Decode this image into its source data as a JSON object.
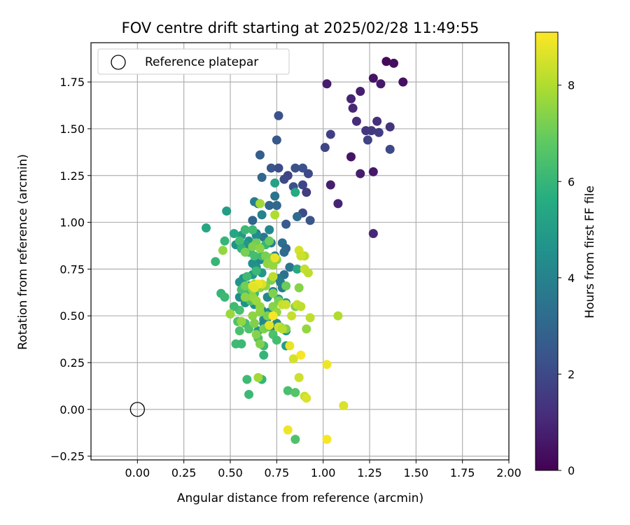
{
  "chart_data": {
    "type": "scatter",
    "title": "FOV centre drift starting at 2025/02/28 11:49:55",
    "xlabel": "Angular distance from reference (arcmin)",
    "ylabel": "Rotation from reference (arcmin)",
    "xlim": [
      -0.25,
      2.0
    ],
    "ylim": [
      -0.27,
      1.96
    ],
    "xticks": [
      "0.00",
      "0.25",
      "0.50",
      "0.75",
      "1.00",
      "1.25",
      "1.50",
      "1.75",
      "2.00"
    ],
    "yticks": [
      "−0.25",
      "0.00",
      "0.25",
      "0.50",
      "0.75",
      "1.00",
      "1.25",
      "1.50",
      "1.75"
    ],
    "grid": true,
    "legend": {
      "position": "top-left",
      "entries": [
        "Reference platepar"
      ]
    },
    "colorbar": {
      "label": "Hours from first FF file",
      "range": [
        0,
        9.1
      ],
      "ticks": [
        "0",
        "2",
        "4",
        "6",
        "8"
      ],
      "colormap": "viridis"
    },
    "reference_point": {
      "x": 0.0,
      "y": 0.0
    },
    "series": [
      {
        "points": [
          [
            1.34,
            1.86,
            0.2
          ],
          [
            1.38,
            1.85,
            0.3
          ],
          [
            1.43,
            1.75,
            0.4
          ],
          [
            1.27,
            1.77,
            0.5
          ],
          [
            1.31,
            1.74,
            0.6
          ],
          [
            1.02,
            1.74,
            0.7
          ],
          [
            1.2,
            1.7,
            0.8
          ],
          [
            1.15,
            1.66,
            0.9
          ],
          [
            1.16,
            1.61,
            1.0
          ],
          [
            1.18,
            1.54,
            1.1
          ],
          [
            1.29,
            1.54,
            1.2
          ],
          [
            1.36,
            1.51,
            1.3
          ],
          [
            1.23,
            1.49,
            1.4
          ],
          [
            1.26,
            1.49,
            1.5
          ],
          [
            1.3,
            1.48,
            1.6
          ],
          [
            1.04,
            1.47,
            1.7
          ],
          [
            1.24,
            1.44,
            1.8
          ],
          [
            1.01,
            1.4,
            1.9
          ],
          [
            1.36,
            1.39,
            2.0
          ],
          [
            1.15,
            1.35,
            0.5
          ],
          [
            1.27,
            1.27,
            0.6
          ],
          [
            1.2,
            1.26,
            0.7
          ],
          [
            1.04,
            1.2,
            0.8
          ],
          [
            1.08,
            1.1,
            0.9
          ],
          [
            1.27,
            0.94,
            1.0
          ],
          [
            0.76,
            1.57,
            2.3
          ],
          [
            0.75,
            1.44,
            2.5
          ],
          [
            0.66,
            1.36,
            2.7
          ],
          [
            0.72,
            1.29,
            2.4
          ],
          [
            0.76,
            1.29,
            2.1
          ],
          [
            0.85,
            1.29,
            2.2
          ],
          [
            0.89,
            1.29,
            2.3
          ],
          [
            0.92,
            1.26,
            2.0
          ],
          [
            0.81,
            1.25,
            1.8
          ],
          [
            0.79,
            1.23,
            2.0
          ],
          [
            0.89,
            1.2,
            1.9
          ],
          [
            0.84,
            1.19,
            2.2
          ],
          [
            0.67,
            1.24,
            3.0
          ],
          [
            0.91,
            1.16,
            1.6
          ],
          [
            0.74,
            1.14,
            3.5
          ],
          [
            0.71,
            1.09,
            3.0
          ],
          [
            0.75,
            1.09,
            3.1
          ],
          [
            0.65,
            1.1,
            3.2
          ],
          [
            0.63,
            1.11,
            3.8
          ],
          [
            0.89,
            1.05,
            2.1
          ],
          [
            0.93,
            1.01,
            2.4
          ],
          [
            0.8,
            0.99,
            2.6
          ],
          [
            0.86,
            1.03,
            3.2
          ],
          [
            0.62,
            1.01,
            3.0
          ],
          [
            0.67,
            1.04,
            4.0
          ],
          [
            0.71,
            0.96,
            4.2
          ],
          [
            0.64,
            0.94,
            3.5
          ],
          [
            0.68,
            0.92,
            3.6
          ],
          [
            0.72,
            0.89,
            3.8
          ],
          [
            0.78,
            0.89,
            3.3
          ],
          [
            0.8,
            0.86,
            3.0
          ],
          [
            0.79,
            0.84,
            3.2
          ],
          [
            0.74,
            0.82,
            4.0
          ],
          [
            0.66,
            0.8,
            4.2
          ],
          [
            0.7,
            0.78,
            4.1
          ],
          [
            0.82,
            0.76,
            3.5
          ],
          [
            0.79,
            0.72,
            3.4
          ],
          [
            0.76,
            0.7,
            3.6
          ],
          [
            0.77,
            0.68,
            3.9
          ],
          [
            0.78,
            0.65,
            3.8
          ],
          [
            0.73,
            0.63,
            4.0
          ],
          [
            0.7,
            0.6,
            4.2
          ],
          [
            0.71,
            0.52,
            4.4
          ],
          [
            0.68,
            0.48,
            4.5
          ],
          [
            0.65,
            0.42,
            4.6
          ],
          [
            0.64,
            0.93,
            4.4
          ],
          [
            0.6,
            0.9,
            4.6
          ],
          [
            0.58,
            0.88,
            4.8
          ],
          [
            0.56,
            0.93,
            4.9
          ],
          [
            0.53,
            0.88,
            4.6
          ],
          [
            0.61,
            0.86,
            4.3
          ],
          [
            0.72,
            0.81,
            4.8
          ],
          [
            0.62,
            0.78,
            4.5
          ],
          [
            0.64,
            0.76,
            4.6
          ],
          [
            0.67,
            0.73,
            4.8
          ],
          [
            0.62,
            0.72,
            4.7
          ],
          [
            0.57,
            0.7,
            4.6
          ],
          [
            0.55,
            0.68,
            4.7
          ],
          [
            0.6,
            0.66,
            4.5
          ],
          [
            0.58,
            0.62,
            4.4
          ],
          [
            0.55,
            0.6,
            4.4
          ],
          [
            0.58,
            0.57,
            4.6
          ],
          [
            0.63,
            0.56,
            4.5
          ],
          [
            0.67,
            0.53,
            4.2
          ],
          [
            0.7,
            0.49,
            4.0
          ],
          [
            0.75,
            0.46,
            4.3
          ],
          [
            0.8,
            0.42,
            4.4
          ],
          [
            0.72,
            0.44,
            4.1
          ],
          [
            0.68,
            0.46,
            4.2
          ],
          [
            0.85,
            1.16,
            5.5
          ],
          [
            0.74,
            1.21,
            5.2
          ],
          [
            0.48,
            1.06,
            5.0
          ],
          [
            0.37,
            0.97,
            5.4
          ],
          [
            0.52,
            0.94,
            5.4
          ],
          [
            0.86,
            0.75,
            5.5
          ],
          [
            0.8,
            0.34,
            5.0
          ],
          [
            0.8,
            0.57,
            4.9
          ],
          [
            0.76,
            0.59,
            5.0
          ],
          [
            0.42,
            0.79,
            6.0
          ],
          [
            0.47,
            0.9,
            6.0
          ],
          [
            0.55,
            0.9,
            6.3
          ],
          [
            0.58,
            0.96,
            6.1
          ],
          [
            0.62,
            0.96,
            6.2
          ],
          [
            0.56,
            0.86,
            5.9
          ],
          [
            0.6,
            0.84,
            6.1
          ],
          [
            0.63,
            0.82,
            6.3
          ],
          [
            0.67,
            0.82,
            6.2
          ],
          [
            0.69,
            0.88,
            6.0
          ],
          [
            0.64,
            0.74,
            6.1
          ],
          [
            0.59,
            0.71,
            6.2
          ],
          [
            0.56,
            0.64,
            6.4
          ],
          [
            0.6,
            0.62,
            6.3
          ],
          [
            0.63,
            0.62,
            6.2
          ],
          [
            0.61,
            0.58,
            6.5
          ],
          [
            0.55,
            0.53,
            6.4
          ],
          [
            0.52,
            0.55,
            6.2
          ],
          [
            0.54,
            0.47,
            6.5
          ],
          [
            0.58,
            0.46,
            6.3
          ],
          [
            0.55,
            0.42,
            6.4
          ],
          [
            0.6,
            0.43,
            6.5
          ],
          [
            0.53,
            0.35,
            6.2
          ],
          [
            0.56,
            0.35,
            6.1
          ],
          [
            0.65,
            0.38,
            6.4
          ],
          [
            0.68,
            0.34,
            6.2
          ],
          [
            0.68,
            0.29,
            6.0
          ],
          [
            0.73,
            0.4,
            6.5
          ],
          [
            0.75,
            0.37,
            6.3
          ],
          [
            0.45,
            0.62,
            6.0
          ],
          [
            0.47,
            0.6,
            6.1
          ],
          [
            0.67,
            0.16,
            6.0
          ],
          [
            0.59,
            0.16,
            6.2
          ],
          [
            0.6,
            0.08,
            6.1
          ],
          [
            0.81,
            0.1,
            6.4
          ],
          [
            0.85,
            0.09,
            6.6
          ],
          [
            0.85,
            -0.16,
            6.5
          ],
          [
            0.5,
            0.51,
            6.8
          ],
          [
            0.64,
            0.89,
            7.1
          ],
          [
            0.71,
            0.9,
            7.0
          ],
          [
            0.62,
            0.87,
            7.3
          ],
          [
            0.66,
            0.86,
            7.5
          ],
          [
            0.58,
            0.84,
            7.2
          ],
          [
            0.69,
            0.82,
            7.2
          ],
          [
            0.72,
            0.81,
            7.3
          ],
          [
            0.75,
            0.8,
            7.4
          ],
          [
            0.7,
            0.78,
            7.5
          ],
          [
            0.73,
            0.77,
            7.6
          ],
          [
            0.58,
            0.66,
            7.1
          ],
          [
            0.62,
            0.64,
            7.4
          ],
          [
            0.66,
            0.65,
            7.5
          ],
          [
            0.69,
            0.66,
            7.5
          ],
          [
            0.72,
            0.69,
            7.2
          ],
          [
            0.73,
            0.62,
            7.3
          ],
          [
            0.76,
            0.58,
            7.2
          ],
          [
            0.73,
            0.55,
            7.4
          ],
          [
            0.75,
            0.52,
            7.6
          ],
          [
            0.7,
            0.5,
            7.2
          ],
          [
            0.66,
            0.52,
            7.5
          ],
          [
            0.62,
            0.5,
            7.5
          ],
          [
            0.63,
            0.46,
            7.3
          ],
          [
            0.64,
            0.4,
            7.4
          ],
          [
            0.68,
            0.43,
            7.3
          ],
          [
            0.7,
            0.44,
            7.1
          ],
          [
            0.66,
            0.35,
            7.3
          ],
          [
            0.77,
            0.44,
            7.5
          ],
          [
            0.8,
            0.43,
            7.3
          ],
          [
            0.8,
            0.66,
            7.0
          ],
          [
            0.87,
            0.65,
            7.4
          ],
          [
            0.85,
            0.55,
            7.3
          ],
          [
            0.91,
            0.43,
            7.6
          ],
          [
            0.63,
            0.67,
            7.8
          ],
          [
            0.65,
            0.17,
            7.8
          ],
          [
            0.62,
            0.6,
            7.6
          ],
          [
            0.64,
            0.58,
            7.7
          ],
          [
            0.66,
            0.55,
            7.6
          ],
          [
            0.58,
            0.6,
            7.5
          ],
          [
            0.5,
            0.51,
            7.7
          ],
          [
            0.56,
            0.47,
            7.6
          ],
          [
            0.46,
            0.85,
            7.6
          ],
          [
            0.66,
            1.1,
            7.8
          ],
          [
            0.74,
            1.04,
            8.0
          ],
          [
            0.67,
            0.67,
            8.6
          ],
          [
            0.73,
            0.71,
            8.2
          ],
          [
            0.78,
            0.56,
            8.3
          ],
          [
            0.8,
            0.56,
            8.4
          ],
          [
            0.86,
            0.56,
            8.3
          ],
          [
            0.88,
            0.55,
            8.2
          ],
          [
            0.76,
            0.44,
            8.4
          ],
          [
            0.78,
            0.43,
            8.1
          ],
          [
            0.83,
            0.5,
            8.3
          ],
          [
            0.9,
            0.82,
            8.1
          ],
          [
            0.9,
            0.75,
            8.3
          ],
          [
            0.92,
            0.73,
            8.2
          ],
          [
            0.87,
            0.85,
            8.5
          ],
          [
            0.88,
            0.82,
            8.4
          ],
          [
            0.93,
            0.49,
            8.2
          ],
          [
            1.08,
            0.5,
            8.0
          ],
          [
            0.84,
            0.27,
            8.5
          ],
          [
            0.87,
            0.17,
            8.4
          ],
          [
            0.9,
            0.07,
            8.3
          ],
          [
            0.91,
            0.06,
            8.6
          ],
          [
            0.62,
            0.66,
            8.8
          ],
          [
            0.65,
            0.67,
            8.9
          ],
          [
            0.73,
            0.5,
            9.0
          ],
          [
            0.82,
            0.34,
            8.8
          ],
          [
            0.88,
            0.29,
            9.0
          ],
          [
            1.02,
            0.24,
            8.9
          ],
          [
            1.11,
            0.02,
            8.6
          ],
          [
            0.81,
            -0.11,
            8.9
          ],
          [
            1.02,
            -0.16,
            9.0
          ],
          [
            0.63,
            0.65,
            8.7
          ],
          [
            0.71,
            0.45,
            8.7
          ],
          [
            0.74,
            0.81,
            8.8
          ]
        ]
      }
    ]
  }
}
